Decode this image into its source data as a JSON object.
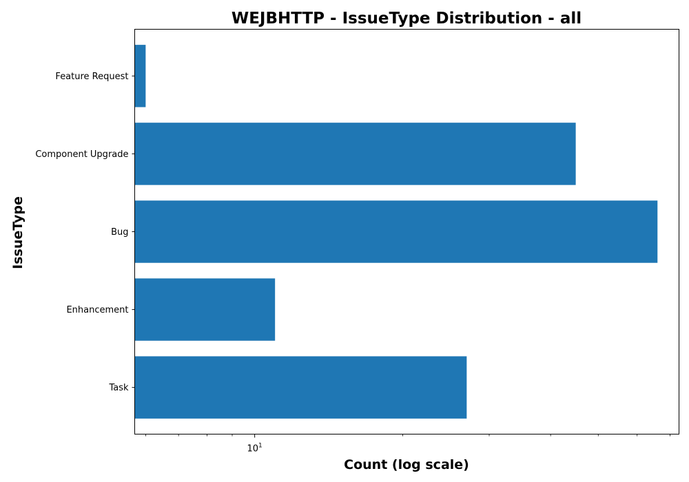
{
  "chart_data": {
    "type": "bar",
    "orientation": "horizontal",
    "title": "WEJBHTTP - IssueType Distribution - all",
    "xlabel": "Count (log scale)",
    "ylabel": "IssueType",
    "x_scale": "log",
    "xlim": [
      5.7,
      73
    ],
    "categories": [
      "Feature Request",
      "Component Upgrade",
      "Bug",
      "Enhancement",
      "Task"
    ],
    "values": [
      6,
      45,
      66,
      11,
      27
    ],
    "x_ticks": [
      {
        "value": 10,
        "base": "10",
        "exponent": "1"
      }
    ],
    "minor_ticks": [
      6,
      7,
      8,
      9,
      20,
      30,
      40,
      50,
      60,
      70
    ],
    "bar_color": "#1f77b4",
    "grid": false,
    "legend": false
  }
}
